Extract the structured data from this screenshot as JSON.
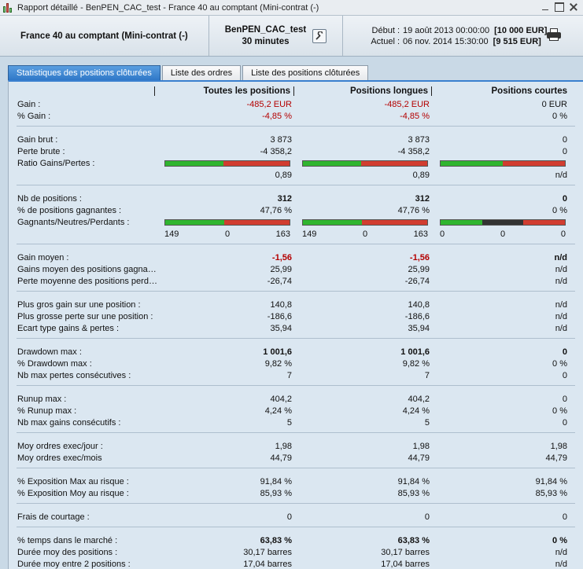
{
  "window": {
    "title": "Rapport détaillé - BenPEN_CAC_test - France 40 au comptant (Mini-contrat (-)",
    "icon": "candlestick-chart-icon"
  },
  "header": {
    "instrument": "France 40 au comptant (Mini-contrat  (-)",
    "strategy": "BenPEN_CAC_test",
    "timeframe": "30 minutes",
    "start_label": "Début :",
    "start_date": "19 août 2013 00:00:00",
    "start_capital": "[10 000 EUR]",
    "current_label": "Actuel :",
    "current_date": "06 nov. 2014 15:30:00",
    "current_capital": "[9 515 EUR]"
  },
  "tabs": [
    "Statistiques des positions clôturées",
    "Liste des ordres",
    "Liste des positions clôturées"
  ],
  "columns": [
    "Toutes les positions",
    "Positions longues",
    "Positions courtes"
  ],
  "rows": [
    {
      "label": "Gain :",
      "v": [
        "-485,2 EUR",
        "-485,2 EUR",
        "0 EUR"
      ],
      "cls": [
        "red",
        "red",
        ""
      ]
    },
    {
      "label": "% Gain :",
      "v": [
        "-4,85 %",
        "-4,85 %",
        "0 %"
      ],
      "cls": [
        "red",
        "red",
        ""
      ]
    },
    {
      "label": "Gain brut :",
      "v": [
        "3 873",
        "3 873",
        "0"
      ]
    },
    {
      "label": "Perte brute :",
      "v": [
        "-4 358,2",
        "-4 358,2",
        "0"
      ]
    },
    {
      "label": "Ratio Gains/Pertes :",
      "v": [
        "",
        "",
        ""
      ]
    },
    {
      "label": "",
      "v": [
        "0,89",
        "0,89",
        "n/d"
      ]
    },
    {
      "label": "Nb de positions :",
      "v": [
        "312",
        "312",
        "0"
      ],
      "cls": [
        "b",
        "b",
        "b"
      ]
    },
    {
      "label": "% de positions gagnantes :",
      "v": [
        "47,76 %",
        "47,76 %",
        "0 %"
      ]
    },
    {
      "label": "Gagnants/Neutres/Perdants :",
      "v": [
        "",
        "",
        ""
      ]
    },
    {
      "label": "",
      "triple": [
        [
          "149",
          "0",
          "163"
        ],
        [
          "149",
          "0",
          "163"
        ],
        [
          "0",
          "0",
          "0"
        ]
      ]
    },
    {
      "label": "Gain moyen :",
      "v": [
        "-1,56",
        "-1,56",
        "n/d"
      ],
      "cls": [
        "red b",
        "red b",
        "b"
      ]
    },
    {
      "label": "Gains moyen des positions gagnantes :",
      "v": [
        "25,99",
        "25,99",
        "n/d"
      ]
    },
    {
      "label": "Perte moyenne des positions perdantes :",
      "v": [
        "-26,74",
        "-26,74",
        "n/d"
      ]
    },
    {
      "label": "Plus gros gain sur une position :",
      "v": [
        "140,8",
        "140,8",
        "n/d"
      ]
    },
    {
      "label": "Plus grosse perte sur une position :",
      "v": [
        "-186,6",
        "-186,6",
        "n/d"
      ]
    },
    {
      "label": "Ecart type gains & pertes :",
      "v": [
        "35,94",
        "35,94",
        "n/d"
      ]
    },
    {
      "label": "Drawdown max :",
      "v": [
        "1 001,6",
        "1 001,6",
        "0"
      ],
      "cls": [
        "b",
        "b",
        "b"
      ]
    },
    {
      "label": "% Drawdown max :",
      "v": [
        "9,82 %",
        "9,82 %",
        "0 %"
      ]
    },
    {
      "label": "Nb max pertes consécutives :",
      "v": [
        "7",
        "7",
        "0"
      ]
    },
    {
      "label": "Runup max :",
      "v": [
        "404,2",
        "404,2",
        "0"
      ]
    },
    {
      "label": "% Runup max :",
      "v": [
        "4,24 %",
        "4,24 %",
        "0 %"
      ]
    },
    {
      "label": "Nb max gains consécutifs :",
      "v": [
        "5",
        "5",
        "0"
      ]
    },
    {
      "label": "Moy ordres exec/jour :",
      "v": [
        "1,98",
        "1,98",
        "1,98"
      ]
    },
    {
      "label": "Moy ordres exec/mois",
      "v": [
        "44,79",
        "44,79",
        "44,79"
      ]
    },
    {
      "label": "% Exposition Max au risque :",
      "v": [
        "91,84 %",
        "91,84 %",
        "91,84 %"
      ]
    },
    {
      "label": "% Exposition Moy au risque :",
      "v": [
        "85,93 %",
        "85,93 %",
        "85,93 %"
      ]
    },
    {
      "label": "Frais de courtage :",
      "v": [
        "0",
        "0",
        "0"
      ]
    },
    {
      "label": "% temps dans le marché :",
      "v": [
        "63,83 %",
        "63,83 %",
        "0 %"
      ],
      "cls": [
        "b",
        "b",
        "b"
      ]
    },
    {
      "label": "Durée moy des positions :",
      "v": [
        "30,17 barres",
        "30,17 barres",
        "n/d"
      ]
    },
    {
      "label": "Durée moy entre 2 positions :",
      "v": [
        "17,04 barres",
        "17,04 barres",
        "n/d"
      ]
    }
  ],
  "gain_loss_ratio_bars": [
    {
      "win_fraction": 0.47,
      "loss_fraction": 0.53
    },
    {
      "win_fraction": 0.47,
      "loss_fraction": 0.53
    },
    {
      "win_fraction": 0.5,
      "loss_fraction": 0.5
    }
  ],
  "win_neutral_loss_bars": [
    {
      "winners": 149,
      "neutral": 0,
      "losers": 163
    },
    {
      "winners": 149,
      "neutral": 0,
      "losers": 163
    },
    {
      "winners": 0,
      "neutral": 0,
      "losers": 0
    }
  ],
  "colors": {
    "accent": "#3a80cf",
    "negative": "#b40000",
    "bar_win": "#2fb52f",
    "bar_loss": "#d13d30",
    "bar_neutral": "#333333"
  }
}
